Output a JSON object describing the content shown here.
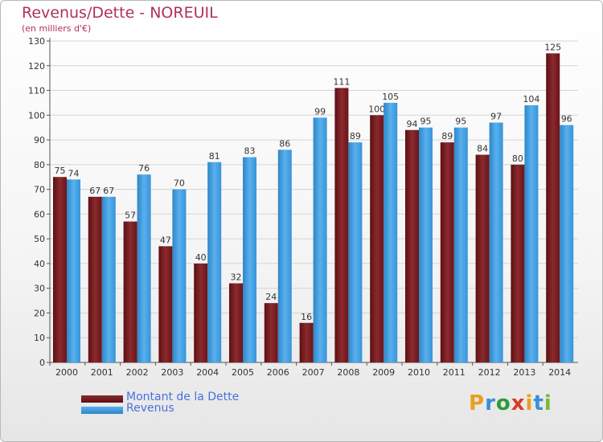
{
  "chart_data": {
    "type": "bar",
    "title": "Revenus/Dette - NOREUIL",
    "subtitle": "(en milliers d'€)",
    "categories": [
      "2000",
      "2001",
      "2002",
      "2003",
      "2004",
      "2005",
      "2006",
      "2007",
      "2008",
      "2009",
      "2010",
      "2011",
      "2012",
      "2013",
      "2014"
    ],
    "series": [
      {
        "name": "Montant de la Dette",
        "color": "#7a1a1f",
        "values": [
          75,
          67,
          57,
          47,
          40,
          32,
          24,
          16,
          111,
          100,
          94,
          89,
          84,
          80,
          125
        ]
      },
      {
        "name": "Revenus",
        "color": "#3d9ce0",
        "values": [
          74,
          67,
          76,
          70,
          81,
          83,
          86,
          99,
          89,
          105,
          95,
          95,
          97,
          104,
          96
        ]
      }
    ],
    "ylim": [
      0,
      130
    ],
    "yticks": [
      0,
      10,
      20,
      30,
      40,
      50,
      60,
      70,
      80,
      90,
      100,
      110,
      120,
      130
    ],
    "grid": true,
    "legend_position": "bottom-left"
  },
  "logo": {
    "letters": [
      "P",
      "r",
      "o",
      "x",
      "i",
      "t",
      "i"
    ],
    "colors": [
      "#e8a020",
      "#3a8fd8",
      "#2e9a3a",
      "#d83a2a",
      "#e8a020",
      "#3a8fd8",
      "#7ab83a"
    ]
  }
}
